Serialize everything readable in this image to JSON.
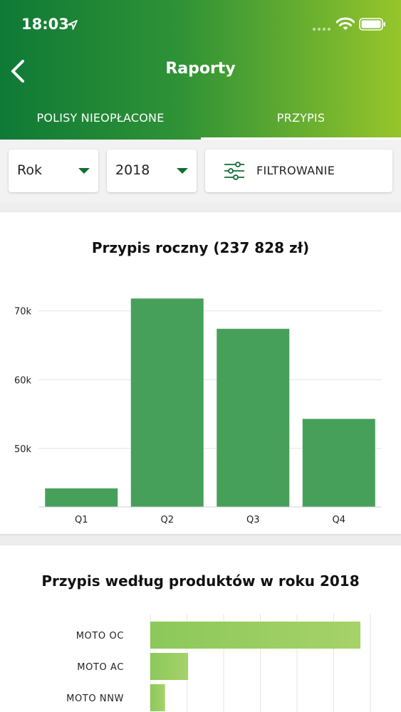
{
  "status_bar": {
    "time": "18:03"
  },
  "header": {
    "title": "Raporty"
  },
  "tabs": [
    {
      "label": "POLISY NIEOPŁACONE",
      "active": false
    },
    {
      "label": "PRZYPIS",
      "active": true
    }
  ],
  "filters": {
    "period_type": "Rok",
    "year": "2018",
    "filter_label": "FILTROWANIE"
  },
  "colors": {
    "accent": "#0e6e34",
    "bar": "#46a05a",
    "bar_light_left": "#8cc85a",
    "bar_light_right": "#a6d26a"
  },
  "annual_chart": {
    "title": "Przypis roczny (237 828 zł)"
  },
  "products_chart": {
    "title": "Przypis według produktów w roku 2018"
  },
  "chart_data": [
    {
      "type": "bar",
      "title": "Przypis roczny (237 828 zł)",
      "categories": [
        "Q1",
        "Q2",
        "Q3",
        "Q4"
      ],
      "values": [
        44200,
        71800,
        67400,
        54300
      ],
      "yticks": [
        50000,
        60000,
        70000
      ],
      "ytick_labels": [
        "50k",
        "60k",
        "70k"
      ],
      "ylim": [
        41500,
        74000
      ],
      "grid": true
    },
    {
      "type": "bar",
      "orientation": "horizontal",
      "title": "Przypis według produktów w roku 2018",
      "categories": [
        "MOTO OC",
        "MOTO AC",
        "MOTO NNW"
      ],
      "values": [
        100,
        18,
        7
      ],
      "grid": true
    }
  ]
}
